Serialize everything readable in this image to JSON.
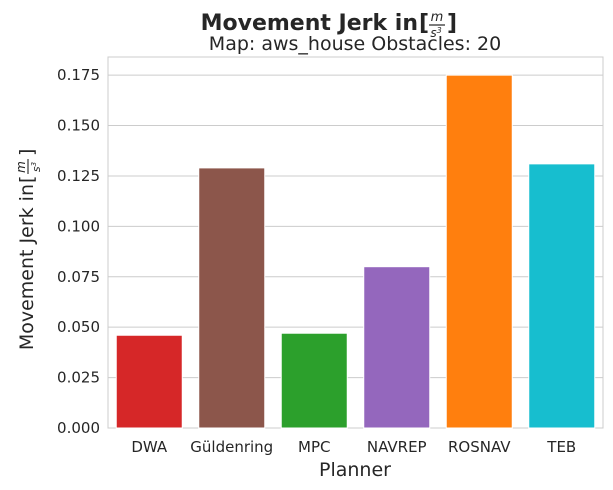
{
  "chart_data": {
    "type": "bar",
    "title": "Movement Jerk in",
    "title_unit": {
      "num": "m",
      "den": "s",
      "den_exp": "3"
    },
    "subtitle": "Map: aws_house Obstacles: 20",
    "xlabel": "Planner",
    "ylabel": "Movement Jerk in",
    "ylabel_unit": {
      "num": "m",
      "den": "s",
      "den_exp": "3"
    },
    "categories": [
      "DWA",
      "Güldenring",
      "MPC",
      "NAVREP",
      "ROSNAV",
      "TEB"
    ],
    "values": [
      0.046,
      0.129,
      0.047,
      0.08,
      0.175,
      0.131
    ],
    "colors": [
      "#d62728",
      "#8c564b",
      "#2ca02c",
      "#9467bd",
      "#ff7f0e",
      "#17becf"
    ],
    "yticks": [
      "0.000",
      "0.025",
      "0.050",
      "0.075",
      "0.100",
      "0.125",
      "0.150",
      "0.175"
    ],
    "ylim": [
      0,
      0.184
    ],
    "grid": true,
    "legend": false
  }
}
